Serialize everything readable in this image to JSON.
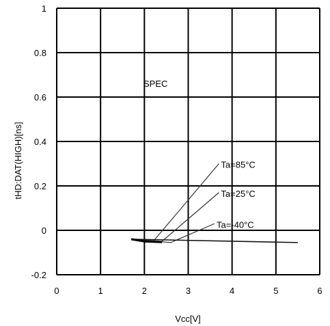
{
  "chart_data": {
    "type": "line",
    "xlabel": "Vcc[V]",
    "ylabel": "tHD:DAT(HIGH)[ns]",
    "xlim": [
      0,
      6
    ],
    "ylim": [
      -0.2,
      1
    ],
    "x_ticks": [
      "0",
      "1",
      "2",
      "3",
      "4",
      "5",
      "6"
    ],
    "y_ticks": [
      "-0.2",
      "0",
      "0.2",
      "0.4",
      "0.6",
      "0.8",
      "1"
    ],
    "grid": true,
    "annotations": [
      "SPEC"
    ],
    "series": [
      {
        "name": "Ta=85°C",
        "x": [
          1.7,
          2.2,
          3.7
        ],
        "y": [
          -0.04,
          -0.05,
          0.3
        ]
      },
      {
        "name": "Ta=25°C",
        "x": [
          1.7,
          2.4,
          3.7
        ],
        "y": [
          -0.04,
          -0.05,
          0.17
        ]
      },
      {
        "name": "Ta=-40°C",
        "x": [
          1.7,
          2.6,
          3.6
        ],
        "y": [
          -0.04,
          -0.055,
          0.03
        ]
      },
      {
        "name": "",
        "x": [
          1.7,
          5.5
        ],
        "y": [
          -0.04,
          -0.055
        ]
      }
    ],
    "series_colors": [
      "#333333",
      "#333333",
      "#333333",
      "#111111"
    ]
  }
}
